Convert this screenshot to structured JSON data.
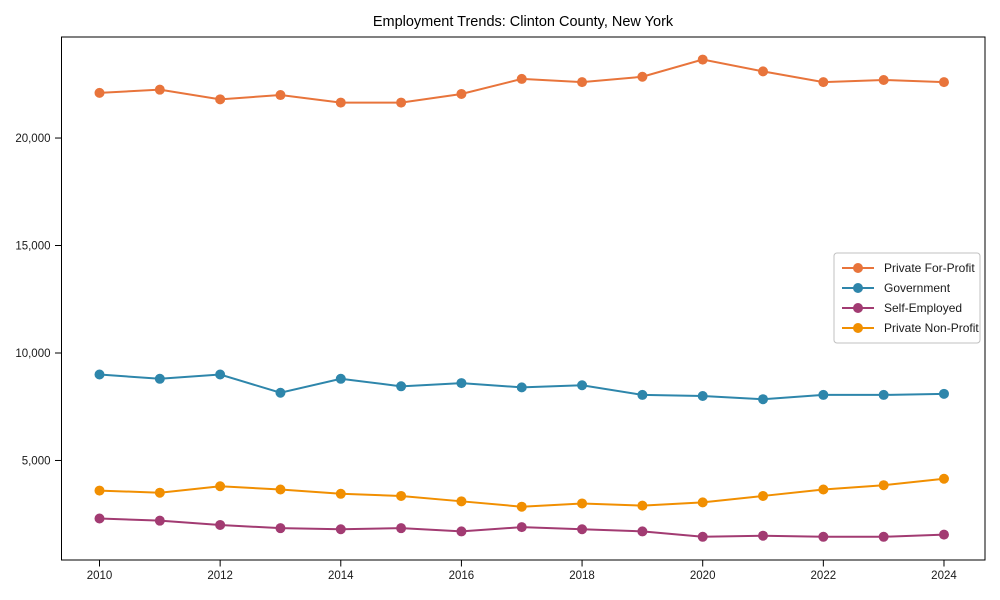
{
  "chart_data": {
    "type": "line",
    "title": "Employment Trends: Clinton County, New York",
    "xlabel": "",
    "ylabel": "",
    "x": [
      2010,
      2011,
      2012,
      2013,
      2014,
      2015,
      2016,
      2017,
      2018,
      2019,
      2020,
      2021,
      2022,
      2023,
      2024
    ],
    "series": [
      {
        "name": "Private For-Profit",
        "color": "#E8743B",
        "values": [
          22100,
          22250,
          21800,
          22000,
          21650,
          21650,
          22050,
          22750,
          22600,
          22850,
          23650,
          23100,
          22600,
          22700,
          22600
        ]
      },
      {
        "name": "Government",
        "color": "#2E86AB",
        "values": [
          9000,
          8800,
          9000,
          8150,
          8800,
          8450,
          8600,
          8400,
          8500,
          8050,
          8000,
          7850,
          8050,
          8050,
          8100
        ]
      },
      {
        "name": "Self-Employed",
        "color": "#A23B72",
        "values": [
          2300,
          2200,
          2000,
          1850,
          1800,
          1850,
          1700,
          1900,
          1800,
          1700,
          1450,
          1500,
          1450,
          1450,
          1550
        ]
      },
      {
        "name": "Private Non-Profit",
        "color": "#F18F01",
        "values": [
          3600,
          3500,
          3800,
          3650,
          3450,
          3350,
          3100,
          2850,
          3000,
          2900,
          3050,
          3350,
          3650,
          3850,
          4150
        ]
      }
    ],
    "xticks": [
      2010,
      2012,
      2014,
      2016,
      2018,
      2020,
      2022,
      2024
    ],
    "yticks": [
      5000,
      10000,
      15000,
      20000
    ],
    "ytick_labels": [
      "5,000",
      "10,000",
      "15,000",
      "20,000"
    ],
    "xlim": [
      2009.37,
      2024.68
    ],
    "ylim": [
      370,
      24700
    ],
    "grid": false,
    "legend_position": "center right",
    "marker": "circle",
    "line_width": 2,
    "marker_radius": 5,
    "axis_color": "#000000",
    "legend_border_color": "#c0c0c0",
    "background_color": "#ffffff"
  }
}
